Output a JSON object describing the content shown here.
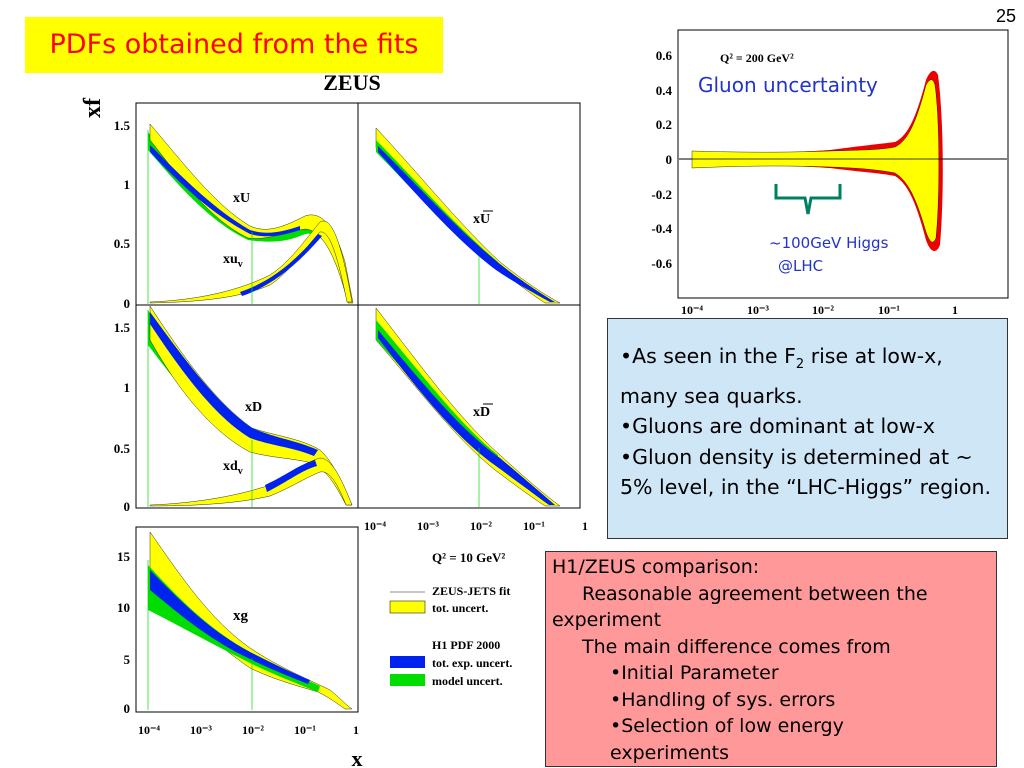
{
  "page_number": "25",
  "slide_title": "PDFs obtained from the fits",
  "left_figure": {
    "title": "ZEUS",
    "ylabel": "xf",
    "xlabel": "x",
    "q2_label": "Q² = 10 GeV²",
    "legend": {
      "zeus_fit": "ZEUS-JETS fit",
      "zeus_unc": "tot. uncert.",
      "h1_title": "H1 PDF 2000",
      "h1_exp": "tot. exp. uncert.",
      "h1_model": "model uncert."
    },
    "colors": {
      "zeus": "#ffff00",
      "h1_exp": "#0022ee",
      "h1_model": "#00dd00"
    }
  },
  "blue_box": {
    "b1_pre": "•As seen in the F",
    "b1_sub": "2",
    "b1_post": " rise at low-x, many sea quarks.",
    "b2": "•Gluons are dominant at low-x",
    "b3": "•Gluon density is determined at ~ 5% level, in the “LHC-Higgs” region.",
    "bg": "#cfe6f7"
  },
  "red_box": {
    "l1": "H1/ZEUS comparison:",
    "l2": "Reasonable agreement between the experiment",
    "l3": "The main difference comes from",
    "l4": "•Initial Parameter",
    "l5": "•Handling of sys. errors",
    "l6": "•Selection of low energy experiments",
    "bg": "#ff9999"
  },
  "chart_data": [
    {
      "type": "area",
      "panel": "xU / xu_v",
      "labels": [
        "xU",
        "xu",
        "v"
      ],
      "x_scale": "log",
      "xlim": [
        0.0001,
        1
      ],
      "ylim": [
        0,
        1.6
      ],
      "yticks": [
        "0",
        "0.5",
        "1",
        "1.5"
      ],
      "series": [
        {
          "name": "xU",
          "x": [
            0.0001,
            0.001,
            0.01,
            0.05,
            0.1,
            0.2,
            0.4,
            0.7
          ],
          "y": [
            1.35,
            0.95,
            0.66,
            0.6,
            0.66,
            0.7,
            0.3,
            0.0
          ]
        },
        {
          "name": "xu_v",
          "x": [
            0.0001,
            0.001,
            0.01,
            0.05,
            0.1,
            0.2,
            0.4,
            0.7
          ],
          "y": [
            0.0,
            0.01,
            0.06,
            0.22,
            0.39,
            0.6,
            0.3,
            0.0
          ]
        }
      ]
    },
    {
      "type": "area",
      "panel": "xUbar",
      "labels": [
        "xU"
      ],
      "x_scale": "log",
      "xlim": [
        0.0001,
        1
      ],
      "ylim": [
        0,
        1.6
      ],
      "series": [
        {
          "name": "xUbar",
          "x": [
            0.0001,
            0.001,
            0.01,
            0.1,
            0.3,
            0.6
          ],
          "y": [
            1.3,
            0.95,
            0.5,
            0.2,
            0.05,
            0.0
          ]
        }
      ]
    },
    {
      "type": "area",
      "panel": "xD / xd_v",
      "labels": [
        "xD",
        "xd",
        "v"
      ],
      "x_scale": "log",
      "xlim": [
        0.0001,
        1
      ],
      "ylim": [
        0,
        1.6
      ],
      "yticks": [
        "0",
        "0.5",
        "1",
        "1.5"
      ],
      "series": [
        {
          "name": "xD",
          "x": [
            0.0001,
            0.001,
            0.01,
            0.05,
            0.1,
            0.2,
            0.4,
            0.7
          ],
          "y": [
            1.5,
            1.0,
            0.6,
            0.5,
            0.42,
            0.25,
            0.08,
            0.0
          ]
        },
        {
          "name": "xd_v",
          "x": [
            0.0001,
            0.001,
            0.01,
            0.05,
            0.1,
            0.2,
            0.4,
            0.7
          ],
          "y": [
            0.0,
            0.01,
            0.05,
            0.2,
            0.3,
            0.28,
            0.1,
            0.0
          ]
        }
      ]
    },
    {
      "type": "area",
      "panel": "xDbar",
      "labels": [
        "xD"
      ],
      "x_scale": "log",
      "xlim": [
        0.0001,
        1
      ],
      "ylim": [
        0,
        1.6
      ],
      "xticks": [
        "10⁻⁴",
        "10⁻³",
        "10⁻²",
        "10⁻¹",
        "1"
      ],
      "series": [
        {
          "name": "xDbar",
          "x": [
            0.0001,
            0.001,
            0.01,
            0.1,
            0.3,
            0.6
          ],
          "y": [
            1.5,
            1.05,
            0.55,
            0.2,
            0.05,
            0.0
          ]
        }
      ]
    },
    {
      "type": "area",
      "panel": "xg",
      "labels": [
        "xg"
      ],
      "x_scale": "log",
      "xlim": [
        0.0001,
        1
      ],
      "ylim": [
        0,
        18
      ],
      "yticks": [
        "0",
        "5",
        "10",
        "15"
      ],
      "xticks": [
        "10⁻⁴",
        "10⁻³",
        "10⁻²",
        "10⁻¹",
        "1"
      ],
      "series": [
        {
          "name": "xg",
          "x": [
            0.0001,
            0.001,
            0.01,
            0.05,
            0.1,
            0.3,
            0.6
          ],
          "y": [
            13.5,
            8.0,
            4.8,
            3.0,
            2.0,
            0.5,
            0.0
          ]
        }
      ]
    },
    {
      "type": "area",
      "panel": "gluon uncertainty",
      "title": "Gluon uncertainty",
      "annotation_q2": "Q² = 200 GeV²",
      "annotation_higgs_1": "~100GeV Higgs",
      "annotation_higgs_2": "@LHC",
      "x_scale": "log",
      "xlim": [
        0.0001,
        1
      ],
      "ylim": [
        -0.7,
        0.7
      ],
      "yticks": [
        "0.6",
        "0.4",
        "0.2",
        "0",
        "-0.2",
        "-0.4",
        "-0.6"
      ],
      "xticks": [
        "10⁻⁴",
        "10⁻³",
        "10⁻²",
        "10⁻¹",
        "1"
      ],
      "series": [
        {
          "name": "uncertainty band",
          "x": [
            0.0001,
            0.001,
            0.01,
            0.05,
            0.1,
            0.2,
            0.4
          ],
          "y_upper": [
            0.045,
            0.03,
            0.03,
            0.05,
            0.1,
            0.3,
            0.5
          ],
          "y_lower": [
            -0.045,
            -0.03,
            -0.03,
            -0.06,
            -0.1,
            -0.3,
            -0.52
          ]
        }
      ]
    }
  ]
}
